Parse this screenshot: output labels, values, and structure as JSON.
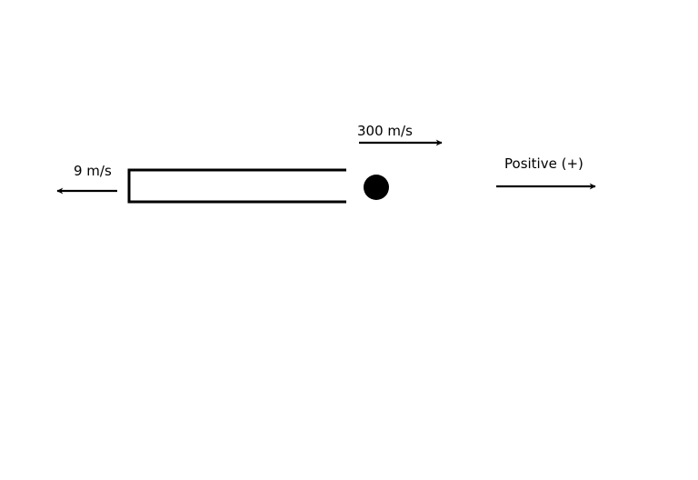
{
  "diagram": {
    "gun_velocity_label": "9 m/s",
    "bullet_velocity_label": "300 m/s",
    "direction_label": "Positive (+)"
  },
  "colors": {
    "ink": "#000000",
    "background": "#ffffff"
  }
}
